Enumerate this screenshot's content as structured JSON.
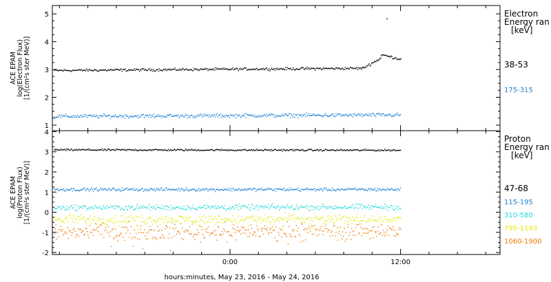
{
  "chart_data": [
    {
      "type": "scatter",
      "panel": "electron",
      "ylabel_lines": [
        "ACE EPAM",
        "log(Electron Flux)",
        "[1/(cm²s ster MeV)]"
      ],
      "ylim": [
        0.8,
        5.3
      ],
      "yticks": [
        "1",
        "2",
        "3",
        "4",
        "5"
      ],
      "legend_title": [
        "Electron",
        "Energy ran",
        "[keV]"
      ],
      "series": [
        {
          "name": "38-53",
          "color": "#000000",
          "segments": [
            {
              "x": [
                -12.4,
                9.3
              ],
              "y": [
                2.98,
                3.06
              ]
            },
            {
              "x": [
                9.3,
                10.6
              ],
              "y": [
                3.06,
                3.42
              ]
            },
            {
              "x": [
                10.6,
                12.0
              ],
              "y": [
                3.55,
                3.38
              ]
            }
          ],
          "scatter": 0.04
        },
        {
          "name": "175-315",
          "color": "#1f7fd0",
          "segments": [
            {
              "x": [
                -12.4,
                12.0
              ],
              "y": [
                1.33,
                1.38
              ]
            }
          ],
          "scatter": 0.06,
          "spikes": [
            {
              "x": 11.0,
              "y": 4.85
            }
          ]
        }
      ]
    },
    {
      "type": "scatter",
      "panel": "proton",
      "ylabel_lines": [
        "ACE EPAM",
        "log(Proton Flux)",
        "[1/(cm²s ster MeV)]"
      ],
      "ylim": [
        -2.1,
        4.05
      ],
      "yticks": [
        "-2",
        "-1",
        "0",
        "1",
        "2",
        "3",
        "4"
      ],
      "legend_title": [
        "Proton",
        "Energy ran",
        "[keV]"
      ],
      "series": [
        {
          "name": "47-68",
          "color": "#000000",
          "segments": [
            {
              "x": [
                -12.4,
                12.0
              ],
              "y": [
                3.12,
                3.1
              ]
            }
          ],
          "scatter": 0.04
        },
        {
          "name": "115-195",
          "color": "#1f7fd0",
          "segments": [
            {
              "x": [
                -12.4,
                12.0
              ],
              "y": [
                1.15,
                1.15
              ]
            }
          ],
          "scatter": 0.07
        },
        {
          "name": "310-580",
          "color": "#20d8d8",
          "segments": [
            {
              "x": [
                -12.4,
                12.0
              ],
              "y": [
                0.25,
                0.28
              ]
            }
          ],
          "scatter": 0.12
        },
        {
          "name": "795-1193",
          "color": "#e8e800",
          "segments": [
            {
              "x": [
                -12.4,
                12.0
              ],
              "y": [
                -0.35,
                -0.32
              ]
            }
          ],
          "scatter": 0.2
        },
        {
          "name": "1060-1900",
          "color": "#f07800",
          "segments": [
            {
              "x": [
                -12.4,
                12.0
              ],
              "y": [
                -0.95,
                -0.9
              ]
            }
          ],
          "scatter": 0.35
        }
      ]
    }
  ],
  "x_axis": {
    "xlim": [
      -12.5,
      19.0
    ],
    "major_ticks": [
      {
        "value": 0,
        "label": "0:00"
      },
      {
        "value": 12,
        "label": "12:00"
      }
    ],
    "minor_step": 2,
    "xlabel": "hours:minutes, May 23, 2016 - May 24, 2016"
  }
}
